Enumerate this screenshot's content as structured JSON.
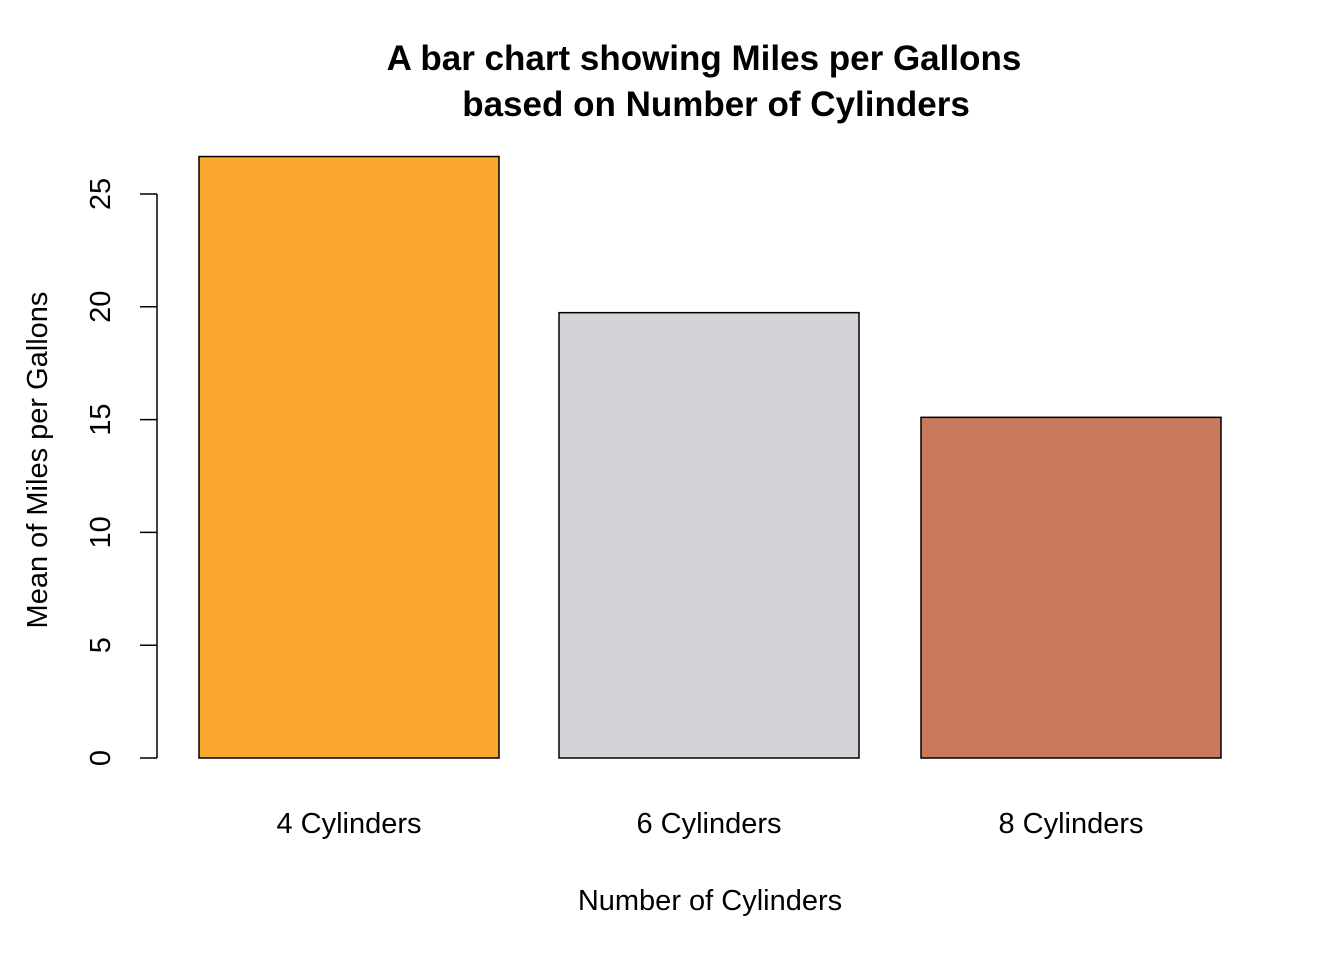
{
  "chart_data": {
    "type": "bar",
    "title_lines": [
      "A bar chart showing Miles per Gallons",
      "based on Number of Cylinders"
    ],
    "xlabel": "Number of Cylinders",
    "ylabel": "Mean of Miles per Gallons",
    "categories": [
      "4 Cylinders",
      "6 Cylinders",
      "8 Cylinders"
    ],
    "values": [
      26.66,
      19.74,
      15.1
    ],
    "colors": [
      "#F9A72E",
      "#D3D4D8",
      "#CA7A5C"
    ],
    "yticks": [
      0,
      5,
      10,
      15,
      20,
      25
    ],
    "ytick_labels": [
      "0",
      "5",
      "10",
      "15",
      "20",
      "25"
    ],
    "ylim": [
      0,
      25
    ],
    "grid": false,
    "legend": "none"
  }
}
